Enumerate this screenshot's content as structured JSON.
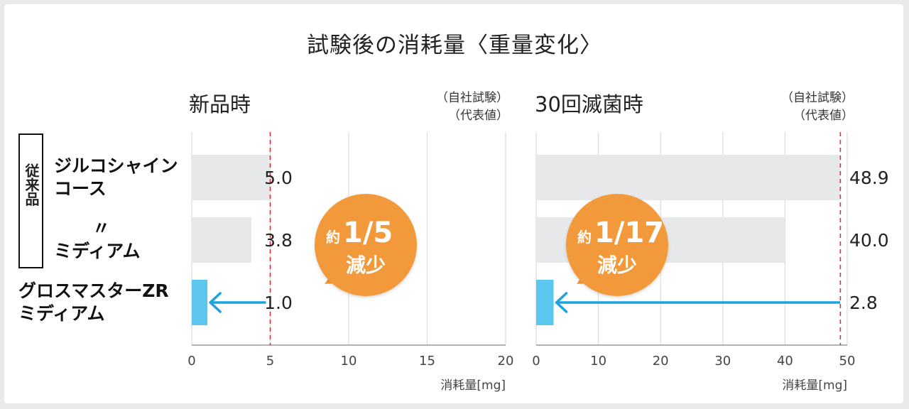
{
  "title": "試験後の消耗量〈重量変化〉",
  "badge": "従来品",
  "row_labels": [
    {
      "line1": "ジルコシャイン",
      "line2": "コース"
    },
    {
      "line1": "〃",
      "line2": "ミディアム"
    },
    {
      "line1": "グロスマスターZR",
      "line2": "ミディアム"
    }
  ],
  "colors": {
    "old_bar": "#e7e8ea",
    "new_bar": "#5cc6ef",
    "arrow": "#1aa3df",
    "ref_line": "#d8333a",
    "callout": "#f29a3b",
    "grid": "#dcdcdc"
  },
  "chart_data": [
    {
      "type": "bar",
      "orientation": "horizontal",
      "title": "新品時",
      "note_line1": "（自社試験）",
      "note_line2": "（代表値）",
      "unit_label": "消耗量[mg]",
      "xlim": [
        0,
        20
      ],
      "ticks": [
        "0",
        "5",
        "10",
        "15",
        "20"
      ],
      "values": [
        5.0,
        3.8,
        1.0
      ],
      "labels": [
        "5.0",
        "3.8",
        "1.0"
      ],
      "callout": {
        "prefix": "約",
        "ratio": "1/5",
        "suffix": "減少"
      }
    },
    {
      "type": "bar",
      "orientation": "horizontal",
      "title": "30回滅菌時",
      "note_line1": "（自社試験）",
      "note_line2": "（代表値）",
      "unit_label": "消耗量[mg]",
      "xlim": [
        0,
        50
      ],
      "ticks": [
        "0",
        "10",
        "20",
        "30",
        "40",
        "50"
      ],
      "values": [
        48.9,
        40.0,
        2.8
      ],
      "labels": [
        "48.9",
        "40.0",
        "2.8"
      ],
      "callout": {
        "prefix": "約",
        "ratio": "1/17",
        "suffix": "減少"
      }
    }
  ]
}
